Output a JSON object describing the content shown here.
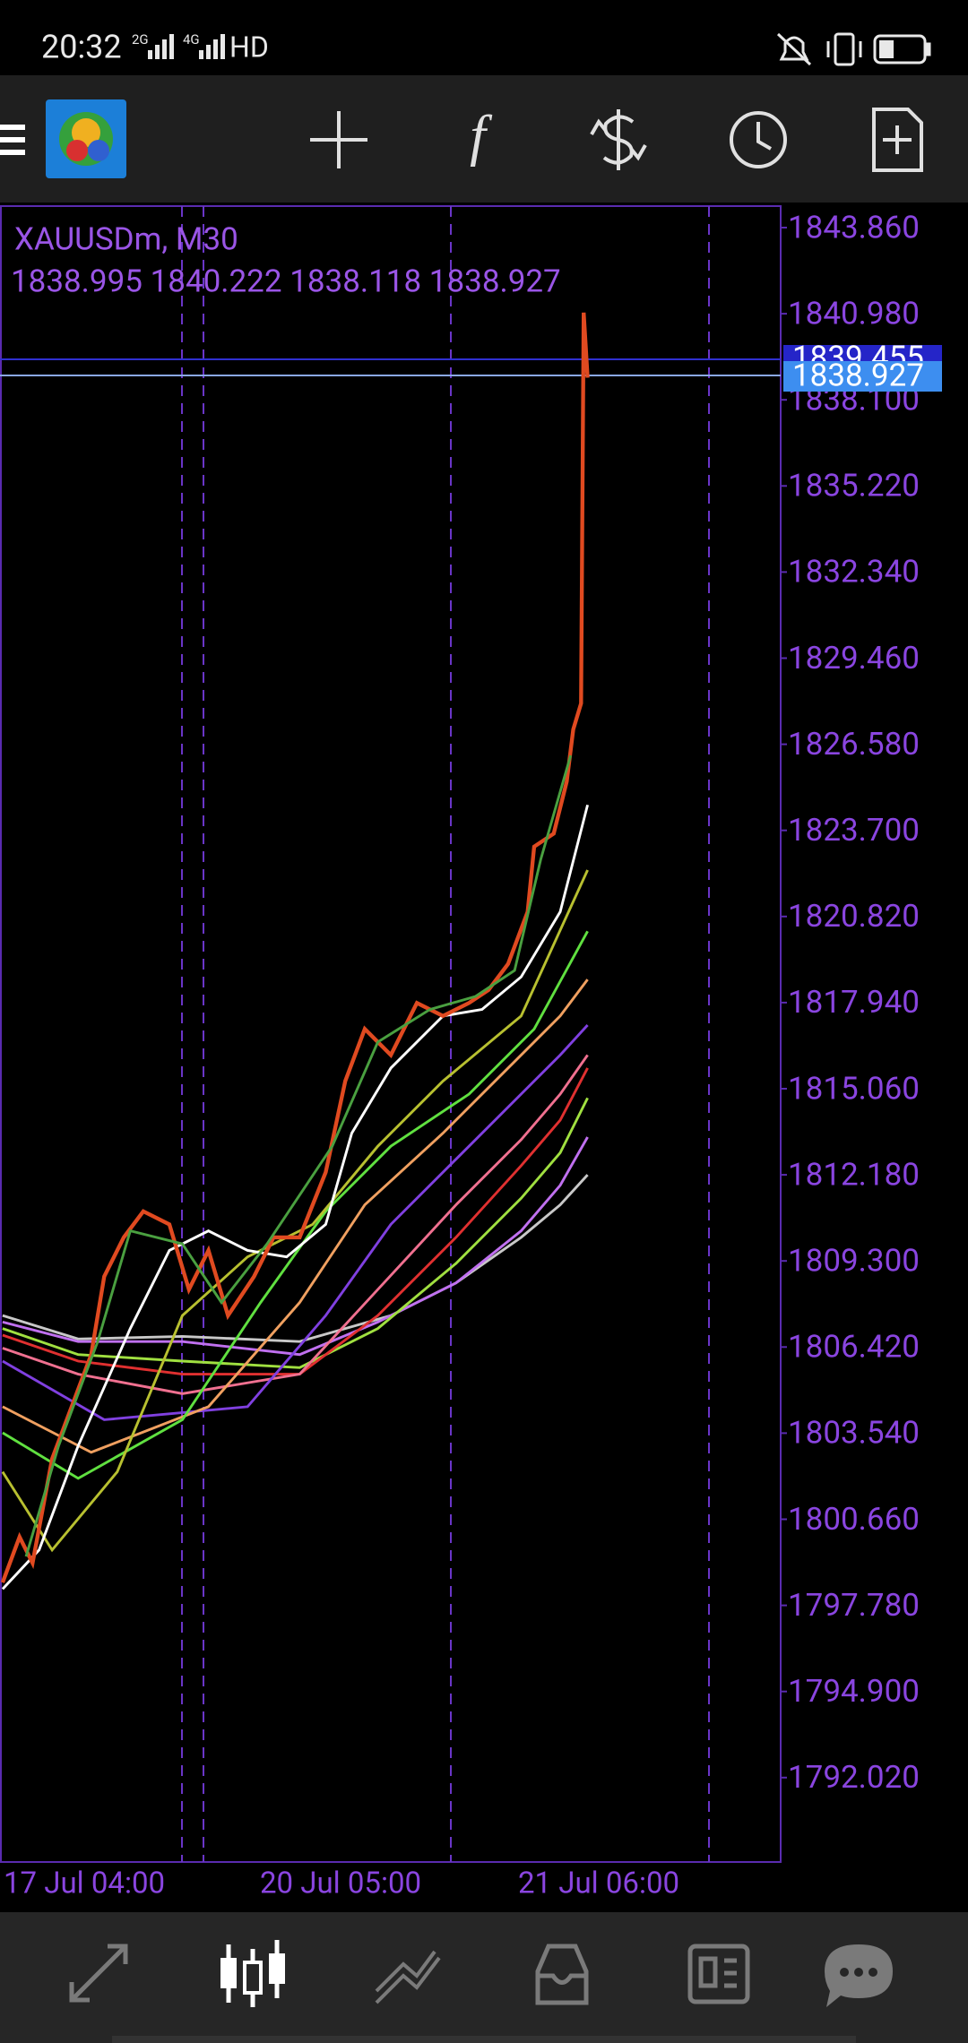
{
  "status_bar": {
    "time": "20:32",
    "network": [
      "2G",
      "4G"
    ],
    "hd": "HD"
  },
  "chart": {
    "symbol": "XAUUSDm, M30",
    "ohlc": "1838.995 1840.222 1838.118 1838.927",
    "price_labels": [
      "1843.860",
      "1840.980",
      "1838.100",
      "1835.220",
      "1832.340",
      "1829.460",
      "1826.580",
      "1823.700",
      "1820.820",
      "1817.940",
      "1815.060",
      "1812.180",
      "1809.300",
      "1806.420",
      "1803.540",
      "1800.660",
      "1797.780",
      "1794.900",
      "1792.020"
    ],
    "ask_label": "1839.455",
    "bid_label": "1838.927",
    "time_labels": [
      "17 Jul 04:00",
      "20 Jul 05:00",
      "21 Jul 06:00"
    ]
  }
}
